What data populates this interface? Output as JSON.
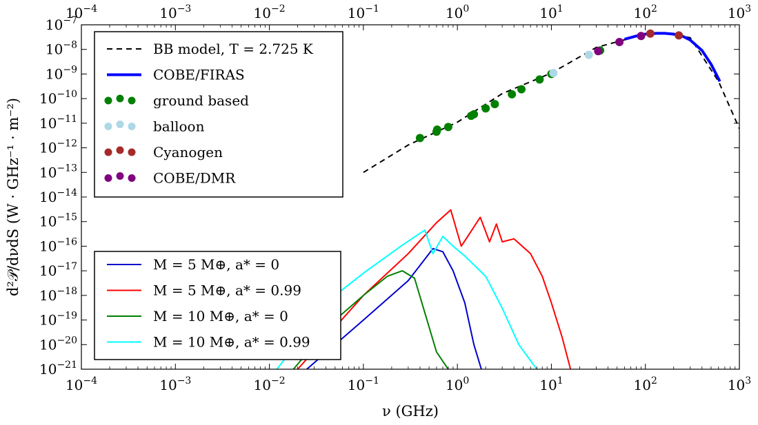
{
  "chart_data": {
    "type": "line",
    "xlabel": "ν (GHz)",
    "ylabel": "d²𝒫/dνdS (W · GHz⁻¹ · m⁻²)",
    "x_scale": "log",
    "y_scale": "log",
    "xlim": [
      0.0001,
      1000
    ],
    "ylim": [
      1e-21,
      1e-07
    ],
    "x_tick_labels": [
      {
        "base": "10",
        "exp": "−4",
        "value": 0.0001
      },
      {
        "base": "10",
        "exp": "−3",
        "value": 0.001
      },
      {
        "base": "10",
        "exp": "−2",
        "value": 0.01
      },
      {
        "base": "10",
        "exp": "−1",
        "value": 0.1
      },
      {
        "base": "10",
        "exp": "0",
        "value": 1
      },
      {
        "base": "10",
        "exp": "1",
        "value": 10
      },
      {
        "base": "10",
        "exp": "2",
        "value": 100
      },
      {
        "base": "10",
        "exp": "3",
        "value": 1000
      }
    ],
    "y_tick_labels": [
      {
        "base": "10",
        "exp": "−7",
        "value": 1e-07
      },
      {
        "base": "10",
        "exp": "−8",
        "value": 1e-08
      },
      {
        "base": "10",
        "exp": "−9",
        "value": 1e-09
      },
      {
        "base": "10",
        "exp": "−10",
        "value": 1e-10
      },
      {
        "base": "10",
        "exp": "−11",
        "value": 1e-11
      },
      {
        "base": "10",
        "exp": "−12",
        "value": 1e-12
      },
      {
        "base": "10",
        "exp": "−13",
        "value": 1e-13
      },
      {
        "base": "10",
        "exp": "−14",
        "value": 1e-14
      },
      {
        "base": "10",
        "exp": "−15",
        "value": 1e-15
      },
      {
        "base": "10",
        "exp": "−16",
        "value": 1e-16
      },
      {
        "base": "10",
        "exp": "−17",
        "value": 1e-17
      },
      {
        "base": "10",
        "exp": "−18",
        "value": 1e-18
      },
      {
        "base": "10",
        "exp": "−19",
        "value": 1e-19
      },
      {
        "base": "10",
        "exp": "−20",
        "value": 1e-20
      },
      {
        "base": "10",
        "exp": "−21",
        "value": 1e-21
      }
    ],
    "top_axis_mirrors_bottom": true,
    "grid": false,
    "series": [
      {
        "name": "BB model, T = 2.725 K",
        "kind": "line",
        "color": "#000000",
        "dash": true,
        "x": [
          0.1,
          0.3,
          1,
          3,
          10,
          30,
          100,
          160,
          300,
          600,
          1000
        ],
        "y": [
          1e-13,
          1.3e-12,
          1.1e-11,
          1.6e-10,
          1.1e-09,
          1.2e-08,
          4.2e-08,
          4.5e-08,
          3e-08,
          5e-10,
          6e-12
        ]
      },
      {
        "name": "COBE/FIRAS",
        "kind": "line",
        "color": "#0000ff",
        "dash": false,
        "x": [
          60,
          80,
          100,
          130,
          160,
          200,
          250,
          300,
          400,
          500,
          620
        ],
        "y": [
          2.6e-08,
          3.5e-08,
          4.2e-08,
          4.5e-08,
          4.5e-08,
          4.2e-08,
          3.4e-08,
          2.4e-08,
          9e-09,
          2.5e-09,
          5e-10
        ]
      },
      {
        "name": "ground based",
        "kind": "scatter",
        "color": "#008000",
        "x": [
          0.4,
          0.6,
          0.61,
          0.8,
          1.4,
          1.5,
          2.0,
          2.5,
          3.8,
          4.8,
          7.5,
          10,
          33
        ],
        "y": [
          2.5e-12,
          4.5e-12,
          5.5e-12,
          7e-12,
          2e-11,
          2.3e-11,
          4e-11,
          6e-11,
          1.5e-10,
          2.4e-10,
          6e-10,
          1e-09,
          9e-09
        ]
      },
      {
        "name": "balloon",
        "kind": "scatter",
        "color": "#add8e6",
        "x": [
          10.5,
          25
        ],
        "y": [
          1.1e-09,
          6e-09
        ]
      },
      {
        "name": "Cyanogen",
        "kind": "scatter",
        "color": "#a52a2a",
        "x": [
          113,
          227
        ],
        "y": [
          4.4e-08,
          3.7e-08
        ]
      },
      {
        "name": "COBE/DMR",
        "kind": "scatter",
        "color": "#800080",
        "x": [
          31.5,
          53,
          90
        ],
        "y": [
          8.5e-09,
          2e-08,
          3.5e-08
        ]
      },
      {
        "name": "M = 5 M⊕, a* = 0",
        "kind": "line",
        "color": "#0000cc",
        "dash": false,
        "x": [
          0.025,
          0.1,
          0.3,
          0.55,
          0.7,
          0.9,
          1.2,
          1.5,
          1.8
        ],
        "y": [
          1e-21,
          1e-19,
          4e-18,
          8e-17,
          6e-17,
          1e-17,
          5e-19,
          1e-20,
          1e-21
        ]
      },
      {
        "name": "M = 5 M⊕, a* = 0.99",
        "kind": "line",
        "color": "#ff0000",
        "dash": false,
        "x": [
          0.02,
          0.1,
          0.3,
          0.6,
          0.85,
          1.1,
          1.75,
          2.2,
          2.6,
          3.0,
          4.0,
          6.0,
          8.0,
          10,
          13,
          16
        ],
        "y": [
          1e-21,
          1e-18,
          5e-17,
          9e-16,
          3e-15,
          1e-16,
          1.5e-15,
          1.5e-16,
          8e-16,
          1.5e-16,
          2e-16,
          5e-17,
          6e-18,
          5e-19,
          2e-20,
          1e-21
        ]
      },
      {
        "name": "M = 10 M⊕, a* = 0",
        "kind": "line",
        "color": "#008000",
        "dash": false,
        "x": [
          0.018,
          0.05,
          0.1,
          0.18,
          0.26,
          0.35,
          0.45,
          0.6,
          0.8
        ],
        "y": [
          1e-21,
          1e-19,
          1e-18,
          6e-18,
          1e-17,
          5e-18,
          2e-19,
          5e-21,
          1e-21
        ]
      },
      {
        "name": "M = 10 M⊕, a* = 0.99",
        "kind": "line",
        "color": "#00ffff",
        "dash": false,
        "x": [
          0.012,
          0.05,
          0.1,
          0.25,
          0.45,
          0.55,
          0.7,
          0.9,
          1.2,
          2,
          3,
          4.5,
          7
        ],
        "y": [
          1e-21,
          1e-18,
          8e-18,
          1e-16,
          4.5e-16,
          5e-17,
          2.5e-16,
          1e-16,
          4e-17,
          6e-18,
          3e-19,
          1e-20,
          1e-21
        ]
      }
    ],
    "legends": [
      {
        "location": "top-left",
        "entries": [
          "BB model, T = 2.725 K",
          "COBE/FIRAS",
          "ground based",
          "balloon",
          "Cyanogen",
          "COBE/DMR"
        ]
      },
      {
        "location": "lower-left",
        "entries": [
          "M = 5 M⊕, a* = 0",
          "M = 5 M⊕, a* = 0.99",
          "M = 10 M⊕, a* = 0",
          "M = 10 M⊕, a* = 0.99"
        ]
      }
    ]
  }
}
